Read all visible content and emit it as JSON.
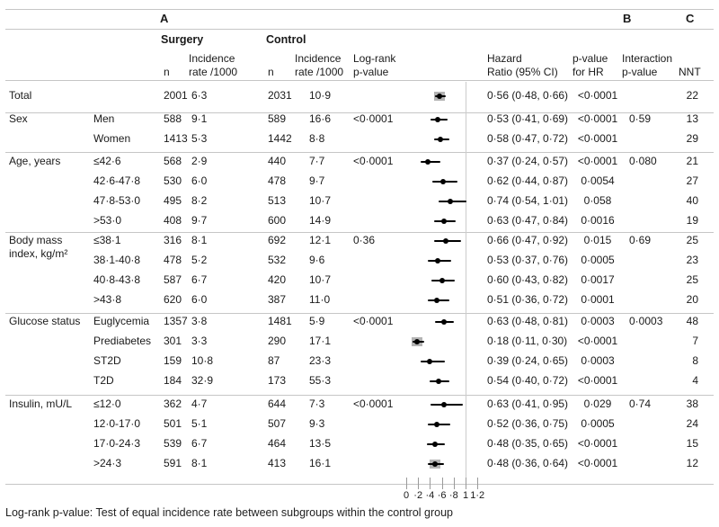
{
  "figure": {
    "panels": {
      "a": "A",
      "b": "B",
      "c": "C"
    },
    "group_headers": {
      "surgery": "Surgery",
      "control": "Control"
    },
    "col_headers": {
      "n_surgery": "n",
      "incidence_surgery": "Incidence\nrate /1000",
      "n_control": "n",
      "incidence_control": "Incidence\nrate /1000",
      "logrank": "Log-rank\np-value",
      "hazard_ratio": "Hazard\nRatio (95% CI)",
      "p_for_hr": "p-value\nfor HR",
      "interaction": "Interaction\np-value",
      "nnt": "NNT"
    },
    "sections": [
      {
        "category": "Total",
        "rows": [
          {
            "sub": "",
            "s_n": "2001",
            "s_inc": "6·3",
            "c_n": "2031",
            "c_inc": "10·9",
            "logrank": "",
            "hr": 0.56,
            "lo": 0.48,
            "hi": 0.66,
            "hr_text": "0·56 (0·48, 0·66)",
            "p_hr": "<0·0001",
            "interaction": "",
            "nnt": "22",
            "gray": true
          }
        ]
      },
      {
        "category": "Sex",
        "rows": [
          {
            "sub": "Men",
            "s_n": "588",
            "s_inc": "9·1",
            "c_n": "589",
            "c_inc": "16·6",
            "logrank": "<0·0001",
            "hr": 0.53,
            "lo": 0.41,
            "hi": 0.69,
            "hr_text": "0·53 (0·41, 0·69)",
            "p_hr": "<0·0001",
            "interaction": "0·59",
            "nnt": "13",
            "gray": false
          },
          {
            "sub": "Women",
            "s_n": "1413",
            "s_inc": "5·3",
            "c_n": "1442",
            "c_inc": "8·8",
            "logrank": "",
            "hr": 0.58,
            "lo": 0.47,
            "hi": 0.72,
            "hr_text": "0·58 (0·47, 0·72)",
            "p_hr": "<0·0001",
            "interaction": "",
            "nnt": "29",
            "gray": false
          }
        ]
      },
      {
        "category": "Age, years",
        "rows": [
          {
            "sub": "≤42·6",
            "s_n": "568",
            "s_inc": "2·9",
            "c_n": "440",
            "c_inc": "7·7",
            "logrank": "<0·0001",
            "hr": 0.37,
            "lo": 0.24,
            "hi": 0.57,
            "hr_text": "0·37 (0·24, 0·57)",
            "p_hr": "<0·0001",
            "interaction": "0·080",
            "nnt": "21",
            "gray": false
          },
          {
            "sub": "42·6-47·8",
            "s_n": "530",
            "s_inc": "6·0",
            "c_n": "478",
            "c_inc": "9·7",
            "logrank": "",
            "hr": 0.62,
            "lo": 0.44,
            "hi": 0.87,
            "hr_text": "0·62 (0·44, 0·87)",
            "p_hr": "0·0054",
            "interaction": "",
            "nnt": "27",
            "gray": false
          },
          {
            "sub": "47·8-53·0",
            "s_n": "495",
            "s_inc": "8·2",
            "c_n": "513",
            "c_inc": "10·7",
            "logrank": "",
            "hr": 0.74,
            "lo": 0.54,
            "hi": 1.01,
            "hr_text": "0·74 (0·54, 1·01)",
            "p_hr": "0·058",
            "interaction": "",
            "nnt": "40",
            "gray": false
          },
          {
            "sub": ">53·0",
            "s_n": "408",
            "s_inc": "9·7",
            "c_n": "600",
            "c_inc": "14·9",
            "logrank": "",
            "hr": 0.63,
            "lo": 0.47,
            "hi": 0.84,
            "hr_text": "0·63 (0·47, 0·84)",
            "p_hr": "0·0016",
            "interaction": "",
            "nnt": "19",
            "gray": false
          }
        ]
      },
      {
        "category": "Body mass\nindex, kg/m²",
        "rows": [
          {
            "sub": "≤38·1",
            "s_n": "316",
            "s_inc": "8·1",
            "c_n": "692",
            "c_inc": "12·1",
            "logrank": "0·36",
            "hr": 0.66,
            "lo": 0.47,
            "hi": 0.92,
            "hr_text": "0·66 (0·47, 0·92)",
            "p_hr": "0·015",
            "interaction": "0·69",
            "nnt": "25",
            "gray": false
          },
          {
            "sub": "38·1-40·8",
            "s_n": "478",
            "s_inc": "5·2",
            "c_n": "532",
            "c_inc": "9·6",
            "logrank": "",
            "hr": 0.53,
            "lo": 0.37,
            "hi": 0.76,
            "hr_text": "0·53 (0·37, 0·76)",
            "p_hr": "0·0005",
            "interaction": "",
            "nnt": "23",
            "gray": false
          },
          {
            "sub": "40·8-43·8",
            "s_n": "587",
            "s_inc": "6·7",
            "c_n": "420",
            "c_inc": "10·7",
            "logrank": "",
            "hr": 0.6,
            "lo": 0.43,
            "hi": 0.82,
            "hr_text": "0·60 (0·43, 0·82)",
            "p_hr": "0·0017",
            "interaction": "",
            "nnt": "25",
            "gray": false
          },
          {
            "sub": ">43·8",
            "s_n": "620",
            "s_inc": "6·0",
            "c_n": "387",
            "c_inc": "11·0",
            "logrank": "",
            "hr": 0.51,
            "lo": 0.36,
            "hi": 0.72,
            "hr_text": "0·51 (0·36, 0·72)",
            "p_hr": "0·0001",
            "interaction": "",
            "nnt": "20",
            "gray": false
          }
        ]
      },
      {
        "category": "Glucose status",
        "rows": [
          {
            "sub": "Euglycemia",
            "s_n": "1357",
            "s_inc": "3·8",
            "c_n": "1481",
            "c_inc": "5·9",
            "logrank": "<0·0001",
            "hr": 0.63,
            "lo": 0.48,
            "hi": 0.81,
            "hr_text": "0·63 (0·48, 0·81)",
            "p_hr": "0·0003",
            "interaction": "0·0003",
            "nnt": "48",
            "gray": false
          },
          {
            "sub": "Prediabetes",
            "s_n": "301",
            "s_inc": "3·3",
            "c_n": "290",
            "c_inc": "17·1",
            "logrank": "",
            "hr": 0.18,
            "lo": 0.11,
            "hi": 0.3,
            "hr_text": "0·18 (0·11, 0·30)",
            "p_hr": "<0·0001",
            "interaction": "",
            "nnt": "7",
            "gray": true
          },
          {
            "sub": "ST2D",
            "s_n": "159",
            "s_inc": "10·8",
            "c_n": "87",
            "c_inc": "23·3",
            "logrank": "",
            "hr": 0.39,
            "lo": 0.24,
            "hi": 0.65,
            "hr_text": "0·39 (0·24, 0·65)",
            "p_hr": "0·0003",
            "interaction": "",
            "nnt": "8",
            "gray": false
          },
          {
            "sub": "T2D",
            "s_n": "184",
            "s_inc": "32·9",
            "c_n": "173",
            "c_inc": "55·3",
            "logrank": "",
            "hr": 0.54,
            "lo": 0.4,
            "hi": 0.72,
            "hr_text": "0·54 (0·40, 0·72)",
            "p_hr": "<0·0001",
            "interaction": "",
            "nnt": "4",
            "gray": false
          }
        ]
      },
      {
        "category": "Insulin, mU/L",
        "rows": [
          {
            "sub": "≤12·0",
            "s_n": "362",
            "s_inc": "4·7",
            "c_n": "644",
            "c_inc": "7·3",
            "logrank": "<0·0001",
            "hr": 0.63,
            "lo": 0.41,
            "hi": 0.95,
            "hr_text": "0·63 (0·41, 0·95)",
            "p_hr": "0·029",
            "interaction": "0·74",
            "nnt": "38",
            "gray": false
          },
          {
            "sub": "12·0-17·0",
            "s_n": "501",
            "s_inc": "5·1",
            "c_n": "507",
            "c_inc": "9·3",
            "logrank": "",
            "hr": 0.52,
            "lo": 0.36,
            "hi": 0.75,
            "hr_text": "0·52 (0·36, 0·75)",
            "p_hr": "0·0005",
            "interaction": "",
            "nnt": "24",
            "gray": false
          },
          {
            "sub": "17·0-24·3",
            "s_n": "539",
            "s_inc": "6·7",
            "c_n": "464",
            "c_inc": "13·5",
            "logrank": "",
            "hr": 0.48,
            "lo": 0.35,
            "hi": 0.65,
            "hr_text": "0·48 (0·35, 0·65)",
            "p_hr": "<0·0001",
            "interaction": "",
            "nnt": "15",
            "gray": false
          },
          {
            "sub": ">24·3",
            "s_n": "591",
            "s_inc": "8·1",
            "c_n": "413",
            "c_inc": "16·1",
            "logrank": "",
            "hr": 0.48,
            "lo": 0.36,
            "hi": 0.64,
            "hr_text": "0·48 (0·36, 0·64)",
            "p_hr": "<0·0001",
            "interaction": "",
            "nnt": "12",
            "gray": true
          }
        ]
      }
    ],
    "axis": {
      "tick_labels": [
        "0",
        "·2",
        "·4",
        "·6",
        "·8",
        "1",
        "1·2"
      ],
      "tick_values": [
        0,
        0.2,
        0.4,
        0.6,
        0.8,
        1,
        1.2
      ],
      "reference_value": 1
    },
    "footnote": "Log-rank p-value: Test of equal incidence rate between subgroups within the control group",
    "colors": {
      "text": "#1a1a1a",
      "rule": "#c6c6c6",
      "marker": "#000000",
      "weight_box": "#b3b3b3",
      "reference_line": "#cccccc"
    }
  },
  "chart_data": {
    "type": "scatter",
    "subtype": "forest-plot",
    "title": "Hazard Ratio (95% CI) forest plot by subgroup",
    "xlabel": "Hazard Ratio",
    "xlim": [
      0,
      1.2
    ],
    "x_ticks": [
      0,
      0.2,
      0.4,
      0.6,
      0.8,
      1,
      1.2
    ],
    "reference_line_x": 1,
    "categories": [
      "Total",
      "Men",
      "Women",
      "≤42·6",
      "42·6-47·8",
      "47·8-53·0",
      ">53·0",
      "≤38·1",
      "38·1-40·8",
      "40·8-43·8",
      ">43·8",
      "Euglycemia",
      "Prediabetes",
      "ST2D",
      "T2D",
      "≤12·0",
      "12·0-17·0",
      "17·0-24·3",
      ">24·3"
    ],
    "hazard_ratio": [
      0.56,
      0.53,
      0.58,
      0.37,
      0.62,
      0.74,
      0.63,
      0.66,
      0.53,
      0.6,
      0.51,
      0.63,
      0.18,
      0.39,
      0.54,
      0.63,
      0.52,
      0.48,
      0.48
    ],
    "ci_low": [
      0.48,
      0.41,
      0.47,
      0.24,
      0.44,
      0.54,
      0.47,
      0.47,
      0.37,
      0.43,
      0.36,
      0.48,
      0.11,
      0.24,
      0.4,
      0.41,
      0.36,
      0.35,
      0.36
    ],
    "ci_high": [
      0.66,
      0.69,
      0.72,
      0.57,
      0.87,
      1.01,
      0.84,
      0.92,
      0.76,
      0.82,
      0.72,
      0.81,
      0.3,
      0.65,
      0.72,
      0.95,
      0.75,
      0.65,
      0.64
    ],
    "legend_position": "none",
    "grid": false
  }
}
